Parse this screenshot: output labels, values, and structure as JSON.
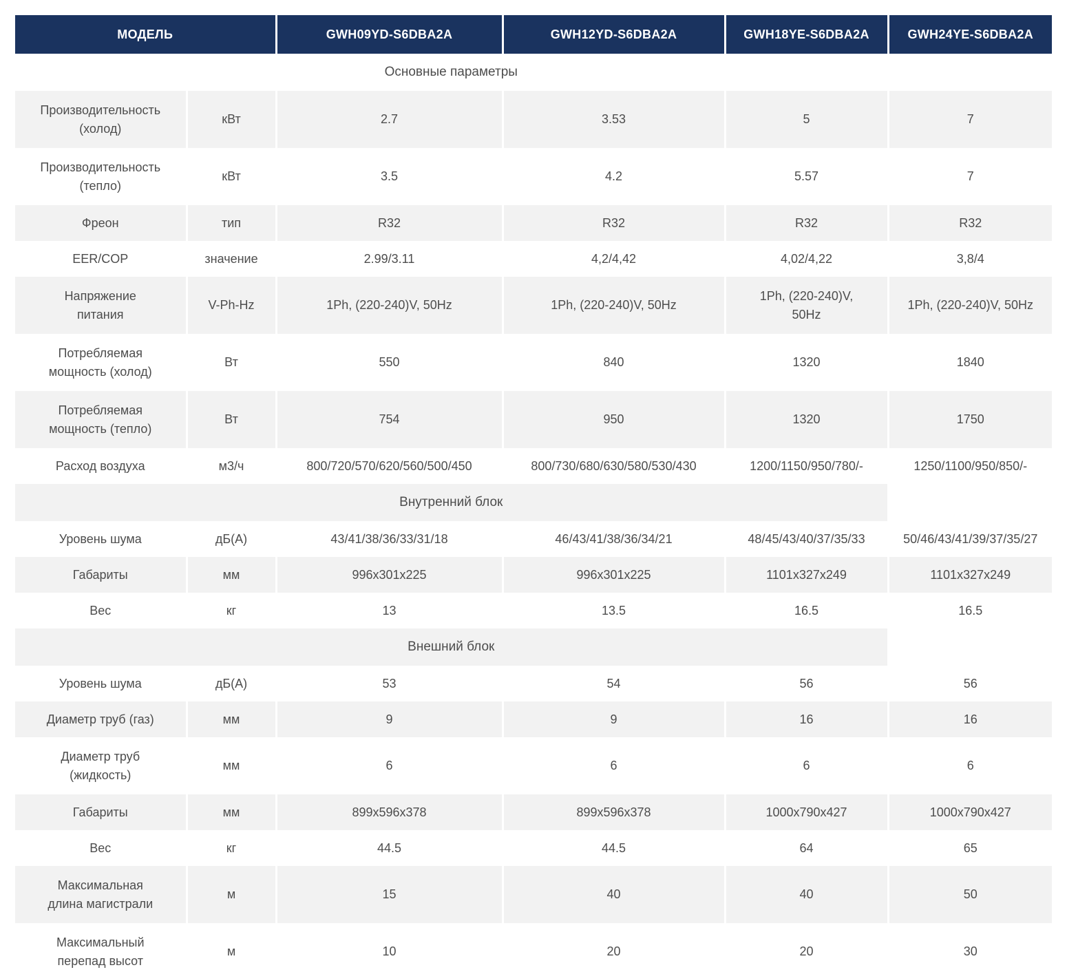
{
  "colors": {
    "header_bg": "#1a335f",
    "header_text": "#ffffff",
    "row_alt_bg": "#f2f2f2",
    "body_text": "#4d4d4d"
  },
  "table": {
    "header": {
      "model_label": "МОДЕЛЬ",
      "models": [
        "GWH09YD-S6DBA2A",
        "GWH12YD-S6DBA2A",
        "GWH18YE-S6DBA2A",
        "GWH24YE-S6DBA2A"
      ]
    },
    "rows": [
      {
        "type": "section",
        "title": "Основные параметры"
      },
      {
        "type": "data",
        "param": [
          "Производительность",
          "(холод)"
        ],
        "unit": "кВт",
        "values": [
          "2.7",
          "3.53",
          "5",
          "7"
        ]
      },
      {
        "type": "data",
        "param": [
          "Производительность",
          "(тепло)"
        ],
        "unit": "кВт",
        "values": [
          "3.5",
          "4.2",
          "5.57",
          "7"
        ]
      },
      {
        "type": "data",
        "param": [
          "Фреон"
        ],
        "unit": "тип",
        "values": [
          "R32",
          "R32",
          "R32",
          "R32"
        ]
      },
      {
        "type": "data",
        "param": [
          "EER/COP"
        ],
        "unit": "значение",
        "values": [
          "2.99/3.11",
          "4,2/4,42",
          "4,02/4,22",
          "3,8/4"
        ]
      },
      {
        "type": "data",
        "param": [
          "Напряжение",
          "питания"
        ],
        "unit": "V-Ph-Hz",
        "values": [
          "1Ph, (220-240)V, 50Hz",
          "1Ph, (220-240)V, 50Hz",
          [
            "1Ph, (220-240)V,",
            "50Hz"
          ],
          "1Ph, (220-240)V, 50Hz"
        ]
      },
      {
        "type": "data",
        "param": [
          "Потребляемая",
          "мощность (холод)"
        ],
        "unit": "Вт",
        "values": [
          "550",
          "840",
          "1320",
          "1840"
        ]
      },
      {
        "type": "data",
        "param": [
          "Потребляемая",
          "мощность (тепло)"
        ],
        "unit": "Вт",
        "values": [
          "754",
          "950",
          "1320",
          "1750"
        ]
      },
      {
        "type": "data",
        "param": [
          "Расход воздуха"
        ],
        "unit": "м3/ч",
        "values": [
          "800/720/570/620/560/500/450",
          "800/730/680/630/580/530/430",
          "1200/1150/950/780/-",
          "1250/1100/950/850/-"
        ]
      },
      {
        "type": "section",
        "title": "Внутренний блок"
      },
      {
        "type": "data",
        "param": [
          "Уровень шума"
        ],
        "unit": "дБ(А)",
        "values": [
          "43/41/38/36/33/31/18",
          "46/43/41/38/36/34/21",
          "48/45/43/40/37/35/33",
          "50/46/43/41/39/37/35/27"
        ]
      },
      {
        "type": "data",
        "param": [
          "Габариты"
        ],
        "unit": "мм",
        "values": [
          "996x301x225",
          "996x301x225",
          "1101x327x249",
          "1101x327x249"
        ]
      },
      {
        "type": "data",
        "param": [
          "Вес"
        ],
        "unit": "кг",
        "values": [
          "13",
          "13.5",
          "16.5",
          "16.5"
        ]
      },
      {
        "type": "section",
        "title": "Внешний блок"
      },
      {
        "type": "data",
        "param": [
          "Уровень шума"
        ],
        "unit": "дБ(А)",
        "values": [
          "53",
          "54",
          "56",
          "56"
        ]
      },
      {
        "type": "data",
        "param": [
          "Диаметр труб (газ)"
        ],
        "unit": "мм",
        "values": [
          "9",
          "9",
          "16",
          "16"
        ]
      },
      {
        "type": "data",
        "param": [
          "Диаметр труб",
          "(жидкость)"
        ],
        "unit": "мм",
        "values": [
          "6",
          "6",
          "6",
          "6"
        ]
      },
      {
        "type": "data",
        "param": [
          "Габариты"
        ],
        "unit": "мм",
        "values": [
          "899x596x378",
          "899x596x378",
          "1000x790x427",
          "1000x790x427"
        ]
      },
      {
        "type": "data",
        "param": [
          "Вес"
        ],
        "unit": "кг",
        "values": [
          "44.5",
          "44.5",
          "64",
          "65"
        ]
      },
      {
        "type": "data",
        "param": [
          "Максимальная",
          "длина магистрали"
        ],
        "unit": "м",
        "values": [
          "15",
          "40",
          "40",
          "50"
        ]
      },
      {
        "type": "data",
        "param": [
          "Максимальный",
          "перепад высот"
        ],
        "unit": "м",
        "values": [
          "10",
          "20",
          "20",
          "30"
        ]
      }
    ]
  }
}
